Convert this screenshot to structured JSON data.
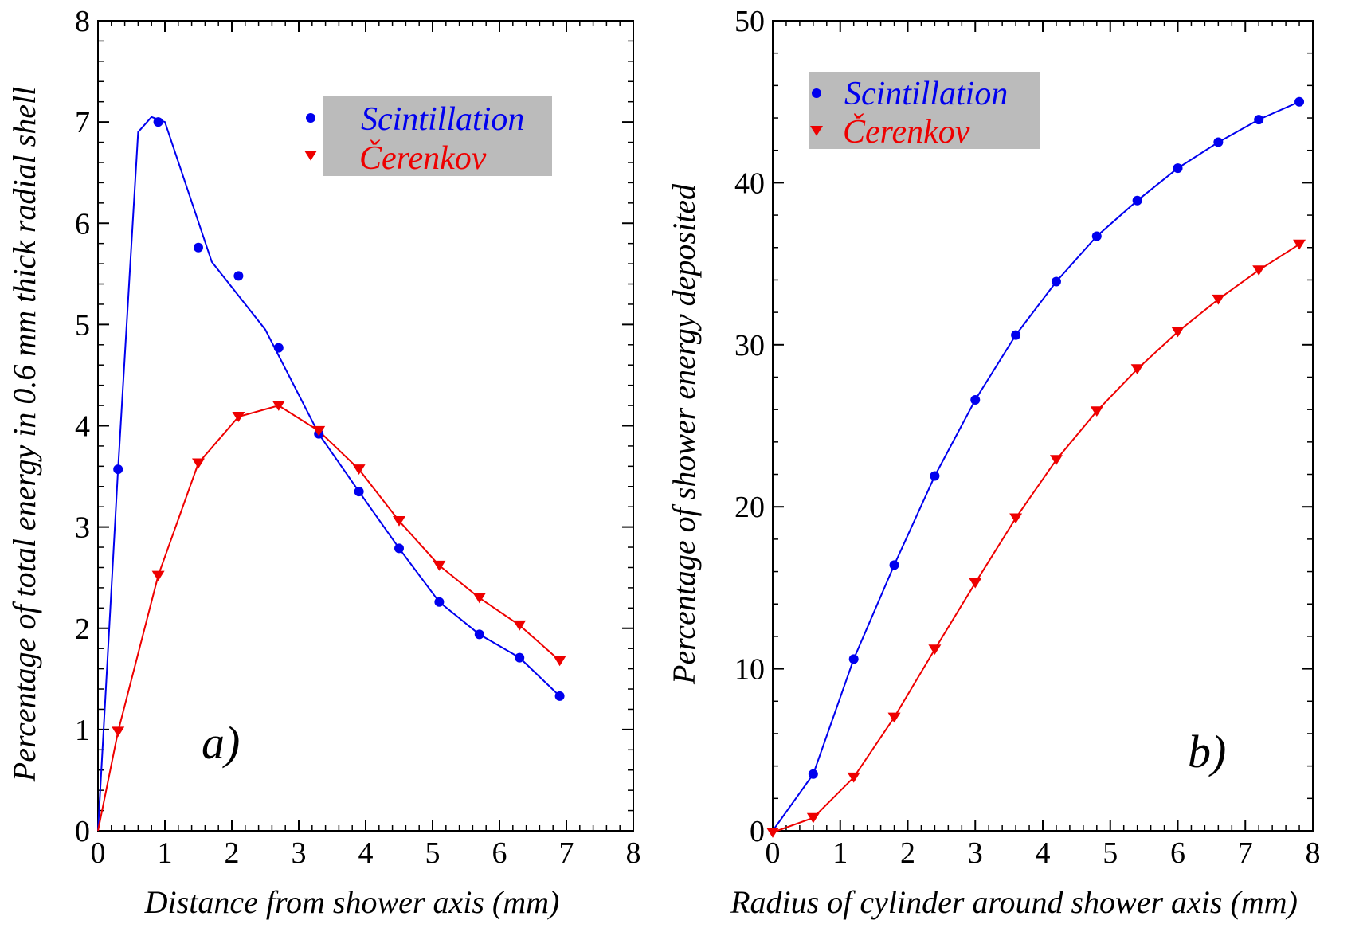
{
  "chart_data": [
    {
      "type": "line",
      "panel_label": "a)",
      "xlabel": "Distance from shower axis (mm)",
      "ylabel": "Percentage of total energy in 0.6 mm thick radial shell",
      "xlim": [
        0,
        8
      ],
      "ylim": [
        0,
        8
      ],
      "xticks": [
        "0",
        "1",
        "2",
        "3",
        "4",
        "5",
        "6",
        "7",
        "8"
      ],
      "yticks": [
        "0",
        "1",
        "2",
        "3",
        "4",
        "5",
        "6",
        "7",
        "8"
      ],
      "legend": {
        "placement": "top-right",
        "background": "#bbbbbb"
      },
      "series": [
        {
          "name": "Scintillation",
          "color": "#0000ee",
          "marker": "circle",
          "points": [
            [
              0.3,
              3.57
            ],
            [
              0.9,
              7.0
            ],
            [
              1.5,
              5.76
            ],
            [
              2.1,
              5.48
            ],
            [
              2.7,
              4.77
            ],
            [
              3.3,
              3.92
            ],
            [
              3.9,
              3.35
            ],
            [
              4.5,
              2.79
            ],
            [
              5.1,
              2.26
            ],
            [
              5.7,
              1.94
            ],
            [
              6.3,
              1.71
            ],
            [
              6.9,
              1.33
            ]
          ],
          "curve": [
            [
              0.0,
              0.0
            ],
            [
              0.3,
              3.57
            ],
            [
              0.6,
              6.9
            ],
            [
              0.8,
              7.05
            ],
            [
              1.0,
              7.0
            ],
            [
              1.7,
              5.62
            ],
            [
              2.5,
              4.95
            ],
            [
              3.3,
              3.92
            ],
            [
              3.9,
              3.35
            ],
            [
              4.5,
              2.79
            ],
            [
              5.1,
              2.26
            ],
            [
              5.7,
              1.94
            ],
            [
              6.3,
              1.71
            ],
            [
              6.9,
              1.33
            ]
          ]
        },
        {
          "name": "Čerenkov",
          "color": "#ee0000",
          "marker": "triangle-down",
          "points": [
            [
              0.3,
              0.98
            ],
            [
              0.9,
              2.52
            ],
            [
              1.5,
              3.63
            ],
            [
              2.1,
              4.09
            ],
            [
              2.7,
              4.2
            ],
            [
              3.3,
              3.95
            ],
            [
              3.9,
              3.57
            ],
            [
              4.5,
              3.06
            ],
            [
              5.1,
              2.62
            ],
            [
              5.7,
              2.3
            ],
            [
              6.3,
              2.03
            ],
            [
              6.9,
              1.68
            ]
          ],
          "curve": [
            [
              0.0,
              0.0
            ],
            [
              0.3,
              0.98
            ],
            [
              0.9,
              2.52
            ],
            [
              1.5,
              3.63
            ],
            [
              2.1,
              4.09
            ],
            [
              2.7,
              4.2
            ],
            [
              3.3,
              3.95
            ],
            [
              3.9,
              3.57
            ],
            [
              4.5,
              3.06
            ],
            [
              5.1,
              2.62
            ],
            [
              5.7,
              2.3
            ],
            [
              6.3,
              2.03
            ],
            [
              6.9,
              1.68
            ]
          ]
        }
      ]
    },
    {
      "type": "line",
      "panel_label": "b)",
      "xlabel": "Radius of cylinder around shower axis (mm)",
      "ylabel": "Percentage of shower energy deposited",
      "xlim": [
        0,
        8
      ],
      "ylim": [
        0,
        50
      ],
      "xticks": [
        "0",
        "1",
        "2",
        "3",
        "4",
        "5",
        "6",
        "7",
        "8"
      ],
      "yticks": [
        "0",
        "10",
        "20",
        "30",
        "40",
        "50"
      ],
      "legend": {
        "placement": "top-left",
        "background": "#bbbbbb"
      },
      "series": [
        {
          "name": "Scintillation",
          "color": "#0000ee",
          "marker": "circle",
          "points": [
            [
              0.6,
              3.5
            ],
            [
              1.2,
              10.6
            ],
            [
              1.8,
              16.4
            ],
            [
              2.4,
              21.9
            ],
            [
              3.0,
              26.6
            ],
            [
              3.6,
              30.6
            ],
            [
              4.2,
              33.9
            ],
            [
              4.8,
              36.7
            ],
            [
              5.4,
              38.9
            ],
            [
              6.0,
              40.9
            ],
            [
              6.6,
              42.5
            ],
            [
              7.2,
              43.9
            ],
            [
              7.8,
              45.0
            ]
          ],
          "curve": [
            [
              0.0,
              0.0
            ],
            [
              0.6,
              3.5
            ],
            [
              1.2,
              10.6
            ],
            [
              1.8,
              16.4
            ],
            [
              2.4,
              21.9
            ],
            [
              3.0,
              26.6
            ],
            [
              3.6,
              30.6
            ],
            [
              4.2,
              33.9
            ],
            [
              4.8,
              36.7
            ],
            [
              5.4,
              38.9
            ],
            [
              6.0,
              40.9
            ],
            [
              6.6,
              42.5
            ],
            [
              7.2,
              43.9
            ],
            [
              7.8,
              45.0
            ]
          ]
        },
        {
          "name": "Čerenkov",
          "color": "#ee0000",
          "marker": "triangle-down",
          "points": [
            [
              0.0,
              -0.1
            ],
            [
              0.6,
              0.8
            ],
            [
              1.2,
              3.3
            ],
            [
              1.8,
              7.0
            ],
            [
              2.4,
              11.2
            ],
            [
              3.0,
              15.3
            ],
            [
              3.6,
              19.3
            ],
            [
              4.2,
              22.9
            ],
            [
              4.8,
              25.9
            ],
            [
              5.4,
              28.5
            ],
            [
              6.0,
              30.8
            ],
            [
              6.6,
              32.8
            ],
            [
              7.2,
              34.6
            ],
            [
              7.8,
              36.2
            ]
          ],
          "curve": [
            [
              0.0,
              -0.1
            ],
            [
              0.6,
              0.8
            ],
            [
              1.2,
              3.3
            ],
            [
              1.8,
              7.0
            ],
            [
              2.4,
              11.2
            ],
            [
              3.0,
              15.3
            ],
            [
              3.6,
              19.3
            ],
            [
              4.2,
              22.9
            ],
            [
              4.8,
              25.9
            ],
            [
              5.4,
              28.5
            ],
            [
              6.0,
              30.8
            ],
            [
              6.6,
              32.8
            ],
            [
              7.2,
              34.6
            ],
            [
              7.8,
              36.2
            ]
          ]
        }
      ]
    }
  ]
}
